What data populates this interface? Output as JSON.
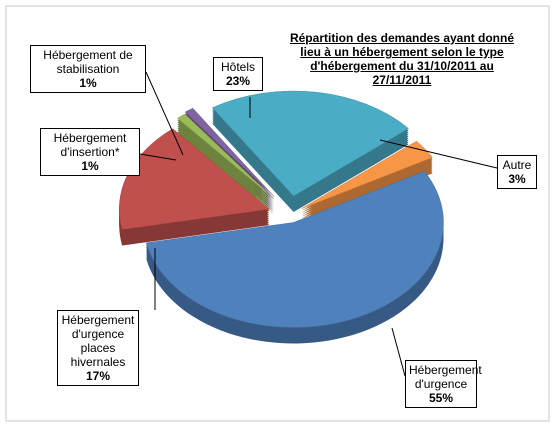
{
  "chart_data": {
    "type": "pie",
    "title": "Répartition des demandes ayant donné lieu à un hébergement selon le type d'hébergement du 31/10/2011 au 27/11/2011",
    "categories": [
      "Autre",
      "Hébergement d'urgence",
      "Hébergement d'urgence places hivernales",
      "Hébergement d'insertion*",
      "Hébergement de stabilisation",
      "Hôtels"
    ],
    "values": [
      3,
      55,
      17,
      1,
      1,
      23
    ],
    "value_labels": [
      "3%",
      "55%",
      "17%",
      "1%",
      "1%",
      "23%"
    ],
    "colors": [
      "#f79646",
      "#4f81bd",
      "#c0504d",
      "#9bbb59",
      "#8064a2",
      "#4bacc6"
    ]
  }
}
